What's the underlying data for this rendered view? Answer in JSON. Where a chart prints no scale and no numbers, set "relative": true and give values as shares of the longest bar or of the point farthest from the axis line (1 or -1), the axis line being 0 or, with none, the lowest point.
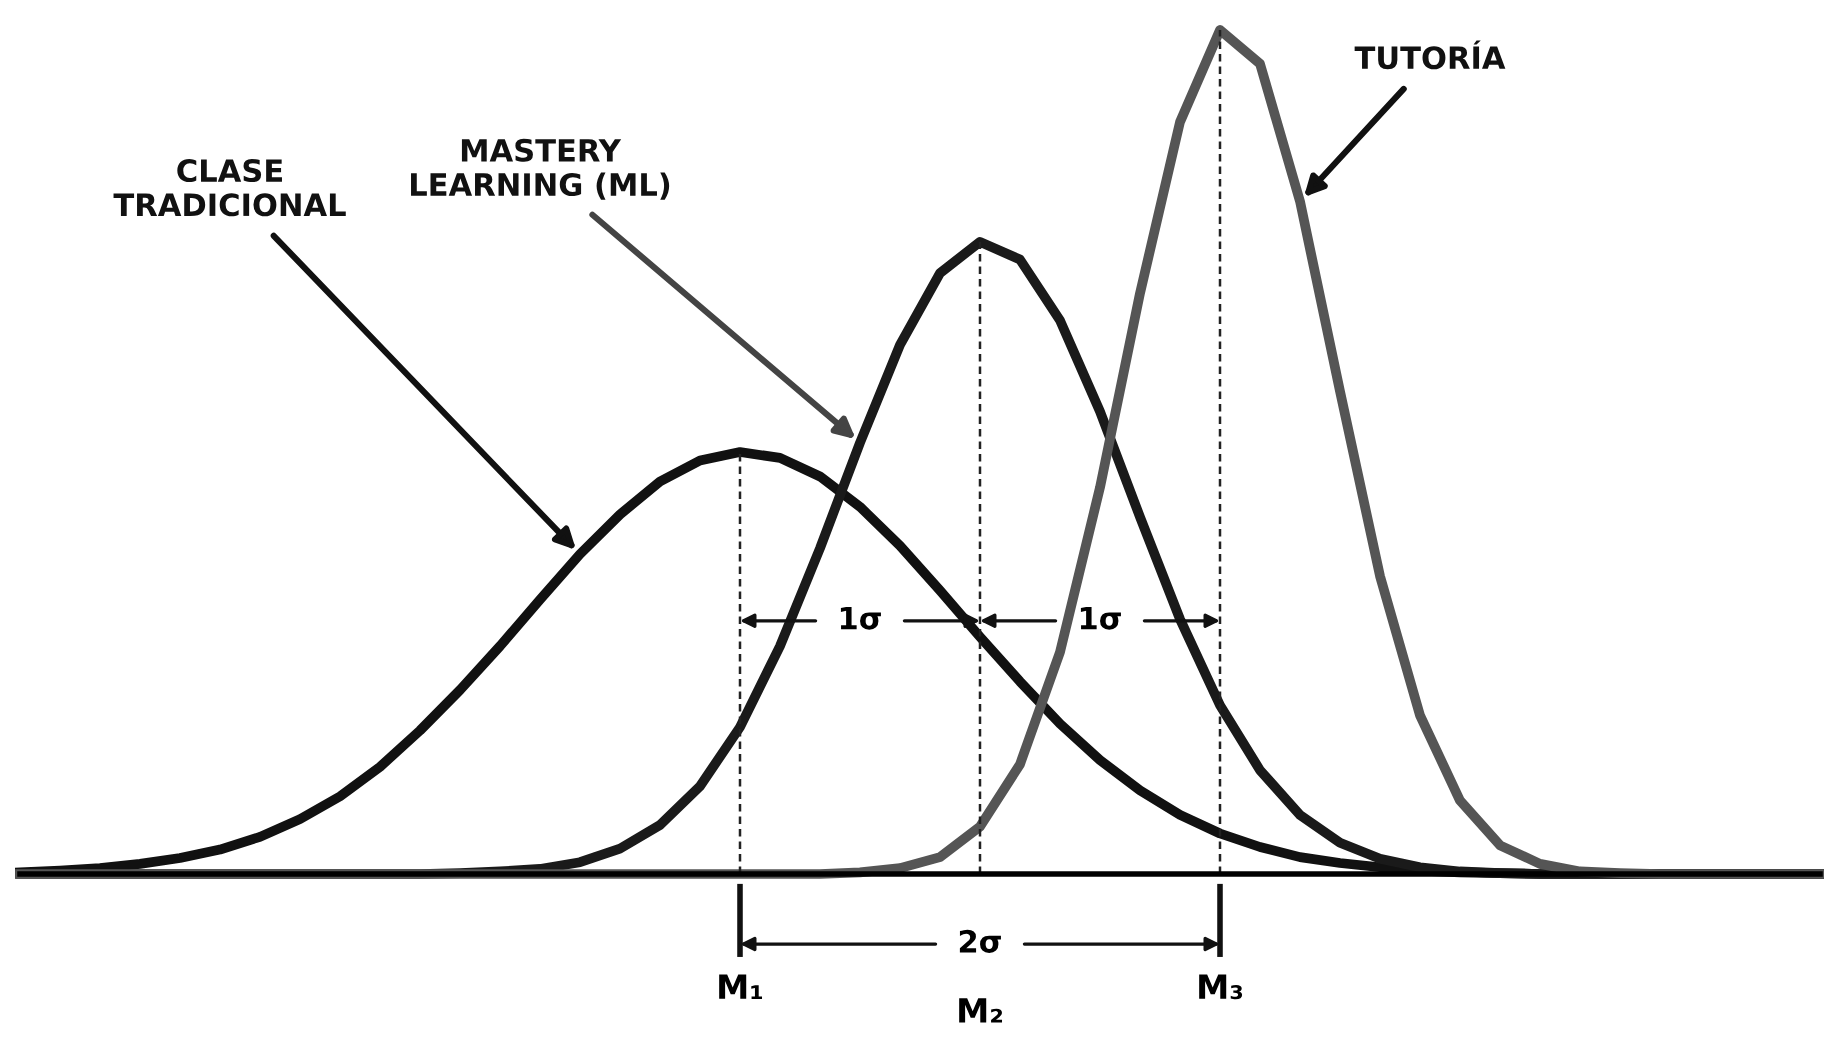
{
  "chart_data": {
    "type": "line",
    "relative": true,
    "categories": [
      null,
      null,
      null,
      null,
      null,
      null,
      null,
      null,
      null,
      null,
      null,
      null,
      null,
      null,
      null,
      null,
      null,
      null,
      null,
      null,
      null,
      null,
      null,
      null,
      null,
      null,
      null,
      null,
      null,
      null,
      null,
      null,
      null,
      null,
      null,
      null,
      null,
      null,
      null,
      null,
      null,
      null,
      null,
      null,
      null,
      null
    ],
    "series": [
      {
        "name": "CLASE\nTRADICIONAL",
        "color": "#111111",
        "values": [
          0.002,
          0.004,
          0.007,
          0.012,
          0.019,
          0.029,
          0.044,
          0.065,
          0.092,
          0.127,
          0.17,
          0.218,
          0.27,
          0.325,
          0.379,
          0.426,
          0.465,
          0.49,
          0.5,
          0.493,
          0.471,
          0.435,
          0.389,
          0.336,
          0.281,
          0.228,
          0.178,
          0.135,
          0.099,
          0.07,
          0.048,
          0.032,
          0.02,
          0.013,
          0.008,
          0.004,
          0.002,
          0.001,
          0,
          0,
          0,
          0,
          0,
          0,
          0,
          0
        ]
      },
      {
        "name": "MASTERY\nLEARNING (ML)",
        "color": "#1a1a1a",
        "values": [
          0,
          0,
          0,
          0,
          0,
          0,
          0,
          0,
          0,
          0,
          0,
          0.001,
          0.003,
          0.006,
          0.014,
          0.03,
          0.058,
          0.104,
          0.174,
          0.27,
          0.386,
          0.511,
          0.627,
          0.712,
          0.749,
          0.728,
          0.656,
          0.548,
          0.423,
          0.302,
          0.2,
          0.123,
          0.07,
          0.037,
          0.018,
          0.008,
          0.003,
          0.001,
          0,
          0,
          0,
          0,
          0,
          0,
          0,
          0
        ]
      },
      {
        "name": "TUTORÍA",
        "color": "#555555",
        "values": [
          0,
          0,
          0,
          0,
          0,
          0,
          0,
          0,
          0,
          0,
          0,
          0,
          0,
          0,
          0,
          0,
          0,
          0,
          0,
          0,
          0,
          0.002,
          0.007,
          0.02,
          0.056,
          0.13,
          0.263,
          0.458,
          0.688,
          0.891,
          1.0,
          0.96,
          0.797,
          0.572,
          0.353,
          0.188,
          0.087,
          0.034,
          0.012,
          0.003,
          0.001,
          0,
          0,
          0,
          0,
          0
        ]
      }
    ],
    "annotations": [
      "1σ",
      "1σ",
      "2σ",
      "M₁",
      "M₂",
      "M₃"
    ]
  }
}
